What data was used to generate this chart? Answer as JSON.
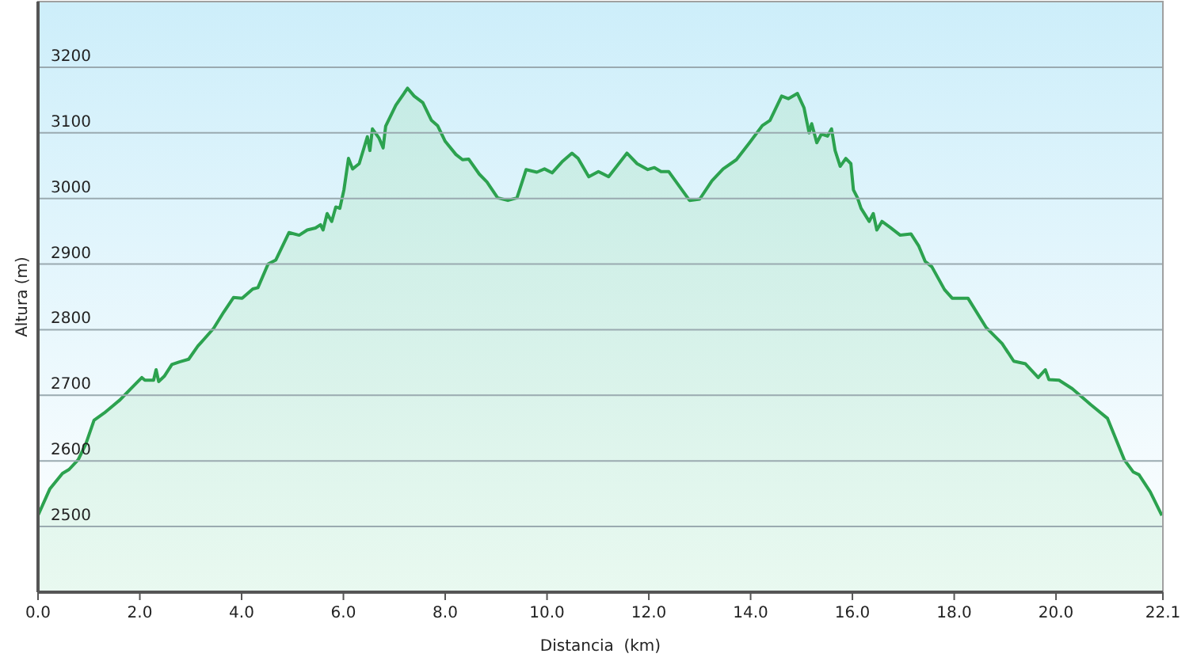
{
  "chart_data": {
    "type": "area",
    "xlabel": "Distancia  (km)",
    "ylabel": "Altura (m)",
    "grid": "y",
    "xlim": [
      0,
      22.1
    ],
    "ylim": [
      2400,
      3300
    ],
    "xticks": [
      {
        "value": 0,
        "label": "0.0"
      },
      {
        "value": 2,
        "label": "2.0"
      },
      {
        "value": 4,
        "label": "4.0"
      },
      {
        "value": 6,
        "label": "6.0"
      },
      {
        "value": 8,
        "label": "8.0"
      },
      {
        "value": 10,
        "label": "10.0"
      },
      {
        "value": 12,
        "label": "12.0"
      },
      {
        "value": 14,
        "label": "14.0"
      },
      {
        "value": 16,
        "label": "16.0"
      },
      {
        "value": 18,
        "label": "18.0"
      },
      {
        "value": 20,
        "label": "20.0"
      },
      22.1
    ],
    "yticks": [
      2500,
      2600,
      2700,
      2800,
      2900,
      3000,
      3100,
      3200
    ],
    "series": [
      {
        "color": "#2ca24f",
        "x": [
          0,
          0.23,
          0.48,
          0.61,
          0.79,
          0.94,
          1.1,
          1.3,
          1.61,
          1.81,
          2.04,
          2.1,
          2.27,
          2.32,
          2.37,
          2.48,
          2.63,
          2.78,
          2.96,
          3.14,
          3.45,
          3.65,
          3.84,
          4.01,
          4.22,
          4.32,
          4.52,
          4.67,
          4.93,
          5.13,
          5.29,
          5.45,
          5.55,
          5.6,
          5.68,
          5.77,
          5.85,
          5.93,
          6.01,
          6.1,
          6.18,
          6.31,
          6.47,
          6.52,
          6.57,
          6.7,
          6.78,
          6.83,
          7.03,
          7.26,
          7.39,
          7.56,
          7.73,
          7.85,
          8.0,
          8.21,
          8.34,
          8.46,
          8.67,
          8.82,
          9.03,
          9.23,
          9.41,
          9.59,
          9.8,
          9.95,
          10.1,
          10.31,
          10.49,
          10.61,
          10.82,
          11.01,
          11.21,
          11.57,
          11.77,
          11.98,
          12.11,
          12.24,
          12.39,
          12.8,
          13.0,
          13.24,
          13.46,
          13.72,
          13.97,
          14.23,
          14.38,
          14.61,
          14.74,
          14.92,
          15.05,
          15.15,
          15.2,
          15.3,
          15.39,
          15.51,
          15.59,
          15.66,
          15.76,
          15.87,
          15.97,
          16.02,
          16.1,
          16.17,
          16.33,
          16.41,
          16.48,
          16.58,
          16.74,
          16.94,
          17.15,
          17.3,
          17.43,
          17.56,
          17.81,
          17.96,
          18.27,
          18.63,
          18.94,
          19.17,
          19.4,
          19.65,
          19.79,
          19.86,
          20.06,
          20.32,
          20.68,
          21.01,
          21.34,
          21.52,
          21.63,
          21.85,
          22.08
        ],
        "values": [
          2517,
          2557,
          2581,
          2587,
          2602,
          2626,
          2662,
          2673,
          2693,
          2709,
          2727,
          2723,
          2723,
          2739,
          2721,
          2729,
          2747,
          2751,
          2755,
          2775,
          2802,
          2827,
          2849,
          2848,
          2862,
          2864,
          2900,
          2906,
          2948,
          2944,
          2952,
          2955,
          2960,
          2952,
          2977,
          2965,
          2987,
          2985,
          3013,
          3061,
          3045,
          3053,
          3094,
          3073,
          3106,
          3092,
          3077,
          3110,
          3142,
          3168,
          3156,
          3146,
          3119,
          3111,
          3087,
          3067,
          3059,
          3060,
          3037,
          3025,
          3001,
          2997,
          3001,
          3044,
          3040,
          3045,
          3039,
          3057,
          3069,
          3061,
          3033,
          3041,
          3033,
          3069,
          3053,
          3044,
          3047,
          3041,
          3041,
          2997,
          2999,
          3027,
          3045,
          3059,
          3084,
          3111,
          3119,
          3156,
          3152,
          3160,
          3138,
          3100,
          3114,
          3085,
          3098,
          3095,
          3106,
          3073,
          3049,
          3061,
          3053,
          3013,
          3001,
          2985,
          2965,
          2977,
          2952,
          2965,
          2956,
          2944,
          2946,
          2928,
          2904,
          2896,
          2861,
          2848,
          2848,
          2803,
          2779,
          2752,
          2748,
          2727,
          2739,
          2724,
          2723,
          2710,
          2686,
          2665,
          2602,
          2583,
          2579,
          2553,
          2517
        ]
      }
    ]
  }
}
